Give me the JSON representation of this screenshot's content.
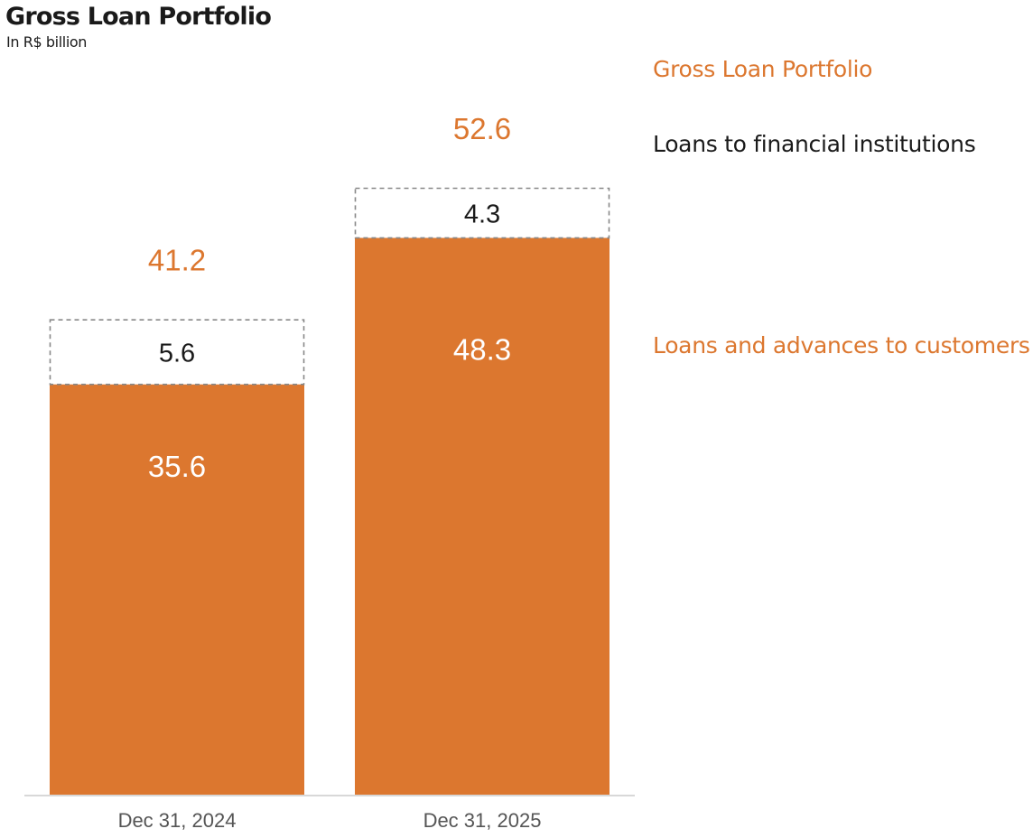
{
  "title": "Gross Loan Portfolio",
  "subtitle": "In R$ billion",
  "colors": {
    "accent": "#DC772F",
    "text": "#1a1a1a",
    "axis_text": "#555555",
    "dashed_border": "#888888",
    "baseline": "#cccccc"
  },
  "chart_data": {
    "type": "bar",
    "stacked": true,
    "categories": [
      "Dec 31, 2024",
      "Dec 31, 2025"
    ],
    "series": [
      {
        "name": "Loans and advances to customers",
        "values": [
          35.6,
          48.3
        ],
        "style": "solid-orange"
      },
      {
        "name": "Loans to financial institutions",
        "values": [
          5.6,
          4.3
        ],
        "style": "dashed-outline"
      }
    ],
    "totals": [
      41.2,
      52.6
    ],
    "total_label": "Gross Loan Portfolio",
    "ylim": [
      0,
      52.6
    ],
    "grid": false,
    "legend_placement": "right"
  },
  "legend": {
    "total": "Gross Loan Portfolio",
    "fin_inst": "Loans to financial institutions",
    "customers": "Loans and advances to customers"
  }
}
